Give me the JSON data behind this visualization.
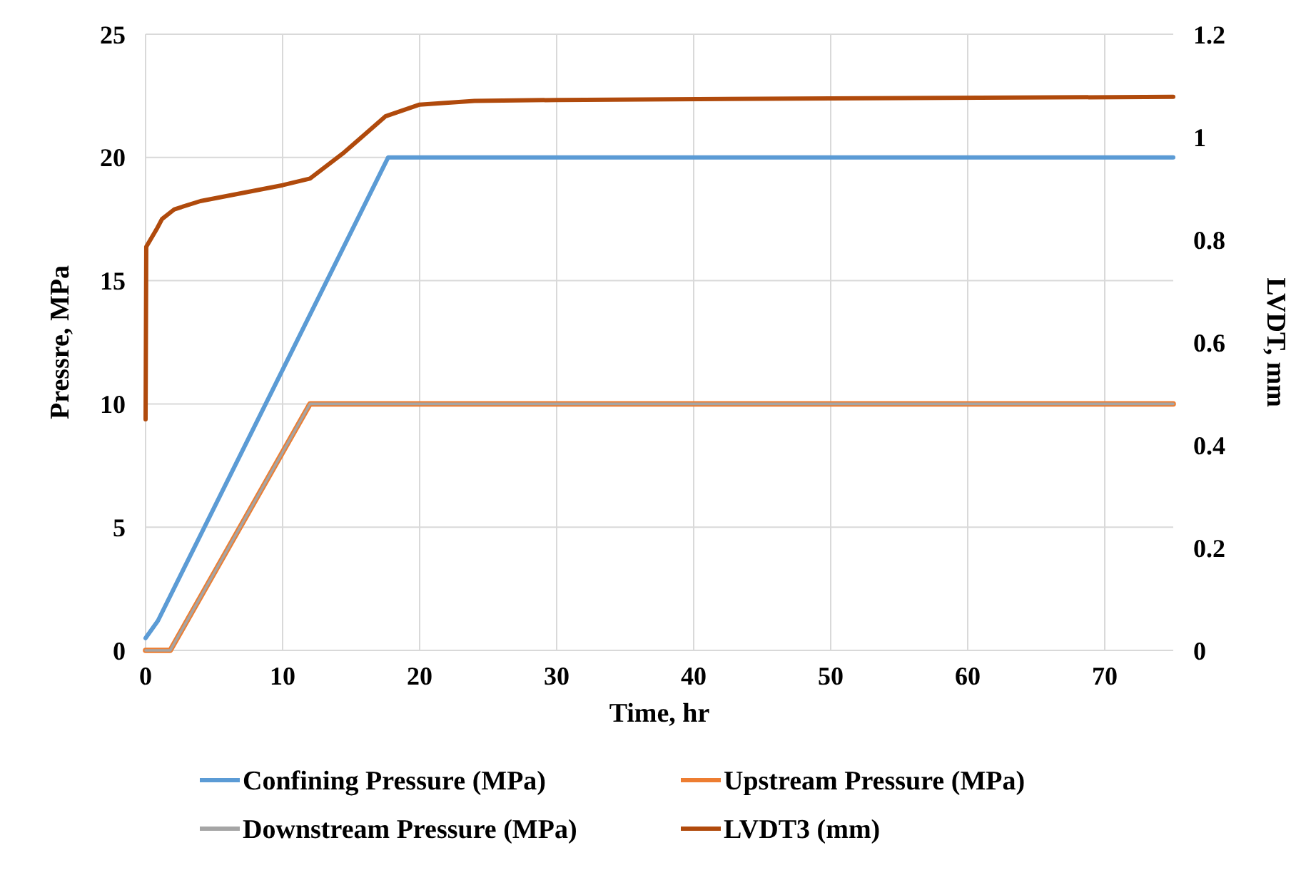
{
  "chart_data": {
    "type": "line",
    "xlabel": "Time, hr",
    "ylabel": "Pressre, MPa",
    "y2label": "LVDT, mm",
    "xlim": [
      0,
      75
    ],
    "xticks": [
      0,
      10,
      20,
      30,
      40,
      50,
      60,
      70
    ],
    "ylim": [
      0,
      25
    ],
    "yticks": [
      0,
      5,
      10,
      15,
      20,
      25
    ],
    "y2lim": [
      0,
      1.2
    ],
    "y2ticks": [
      0,
      {
        "value": 0.2,
        "label": "0.2"
      },
      {
        "value": 0.4,
        "label": "0.4"
      },
      {
        "value": 0.6,
        "label": "0.6"
      },
      {
        "value": 0.8,
        "label": "0.8"
      },
      1,
      {
        "value": 1.2,
        "label": "1.2"
      }
    ],
    "grid": true,
    "legend": "bottom",
    "marker": "none",
    "line_style": "solid",
    "series": [
      {
        "name": "Confining Pressure (MPa)",
        "color": "#5b9bd5",
        "x": [
          0,
          0.9,
          17.7,
          75
        ],
        "values": [
          0.5,
          1.2,
          20,
          20
        ]
      },
      {
        "name": "Upstream Pressure (MPa)",
        "color": "#ed7d31",
        "x": [
          0,
          1.8,
          12,
          75
        ],
        "values": [
          0,
          0,
          10,
          10
        ]
      },
      {
        "name": "Downstream Pressure (MPa)",
        "color": "#a5a5a5",
        "x": [
          0,
          1.8,
          12,
          75
        ],
        "values": [
          0,
          0,
          10,
          10
        ]
      },
      {
        "name": "LVDT3 (mm)",
        "color": "#b04a0c",
        "axis": "y2",
        "x": [
          0,
          0.05,
          0.8,
          1.2,
          2.1,
          4,
          10,
          12,
          14.5,
          17.5,
          20,
          24,
          30,
          50,
          75
        ],
        "values": [
          0.45,
          0.786,
          0.82,
          0.84,
          0.859,
          0.875,
          0.906,
          0.919,
          0.97,
          1.04,
          1.063,
          1.07,
          1.072,
          1.075,
          1.078
        ]
      }
    ]
  }
}
